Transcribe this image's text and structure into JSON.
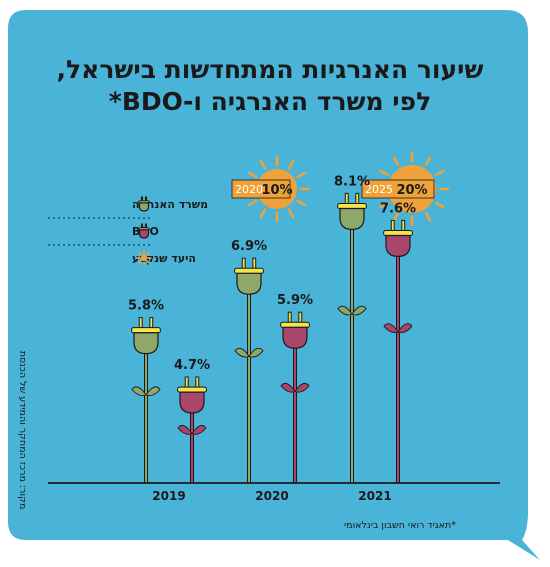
{
  "title_line1": "שיעור האנרגיות המתחדשות בישראל,",
  "title_line2": "לפי משרד האנרגיה ו-BDO*",
  "source": "מקור: מרכז המחקר והמידע של הכנסת",
  "footnote": "*תאגיד רואי חשבון בינלאומי",
  "legend": [
    {
      "label": "משרד האנרגיה",
      "color": "#8fa86a",
      "kind": "plug"
    },
    {
      "label": "BDO",
      "color": "#a8476b",
      "kind": "plug"
    },
    {
      "label": "היעד שנקבע",
      "color": "#f0a23a",
      "kind": "sun"
    }
  ],
  "targets": [
    {
      "year": "2020",
      "value": "10%",
      "pct": 10
    },
    {
      "year": "2025",
      "value": "20%",
      "pct": 20
    }
  ],
  "colors": {
    "background": "#4ab3d8",
    "ministry": "#8fa86a",
    "bdo": "#a8476b",
    "sun": "#f0a23a",
    "prongs": "#f2e44a"
  },
  "chart_data": {
    "type": "bar",
    "categories": [
      "2019",
      "2020",
      "2021"
    ],
    "series": [
      {
        "name": "משרד האנרגיה",
        "values": [
          5.8,
          6.9,
          8.1
        ],
        "labels": [
          "5.8%",
          "6.9%",
          "8.1%"
        ]
      },
      {
        "name": "BDO",
        "values": [
          4.7,
          5.9,
          7.6
        ],
        "labels": [
          "4.7%",
          "5.9%",
          "7.6%"
        ]
      }
    ],
    "unit": "%"
  }
}
